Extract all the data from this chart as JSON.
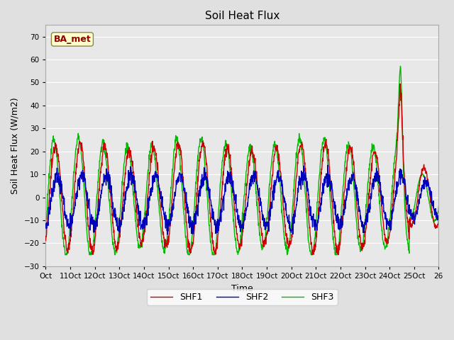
{
  "title": "Soil Heat Flux",
  "ylabel": "Soil Heat Flux (W/m2)",
  "xlabel": "Time",
  "ylim": [
    -30,
    75
  ],
  "yticks": [
    -30,
    -20,
    -10,
    0,
    10,
    20,
    30,
    40,
    50,
    60,
    70
  ],
  "x_start_day": 10,
  "x_end_day": 26,
  "num_points": 1440,
  "fig_bg_color": "#e0e0e0",
  "plot_bg_color": "#e8e8e8",
  "shf1_color": "#cc0000",
  "shf2_color": "#0000bb",
  "shf3_color": "#00bb00",
  "legend_label1": "SHF1",
  "legend_label2": "SHF2",
  "legend_label3": "SHF3",
  "annotation_text": "BA_met",
  "annotation_color": "#8b0000",
  "annotation_bg": "#ffffcc",
  "x_tick_labels": [
    "Oct",
    "11Oct",
    "12Oct",
    "13Oct",
    "14Oct",
    "15Oct",
    "16Oct",
    "17Oct",
    "18Oct",
    "19Oct",
    "20Oct",
    "21Oct",
    "22Oct",
    "23Oct",
    "24Oct",
    "25Oct",
    "26"
  ],
  "x_tick_positions": [
    10,
    11,
    12,
    13,
    14,
    15,
    16,
    17,
    18,
    19,
    20,
    21,
    22,
    23,
    24,
    25,
    26
  ],
  "grid_color": "#ffffff",
  "linewidth": 1.0
}
